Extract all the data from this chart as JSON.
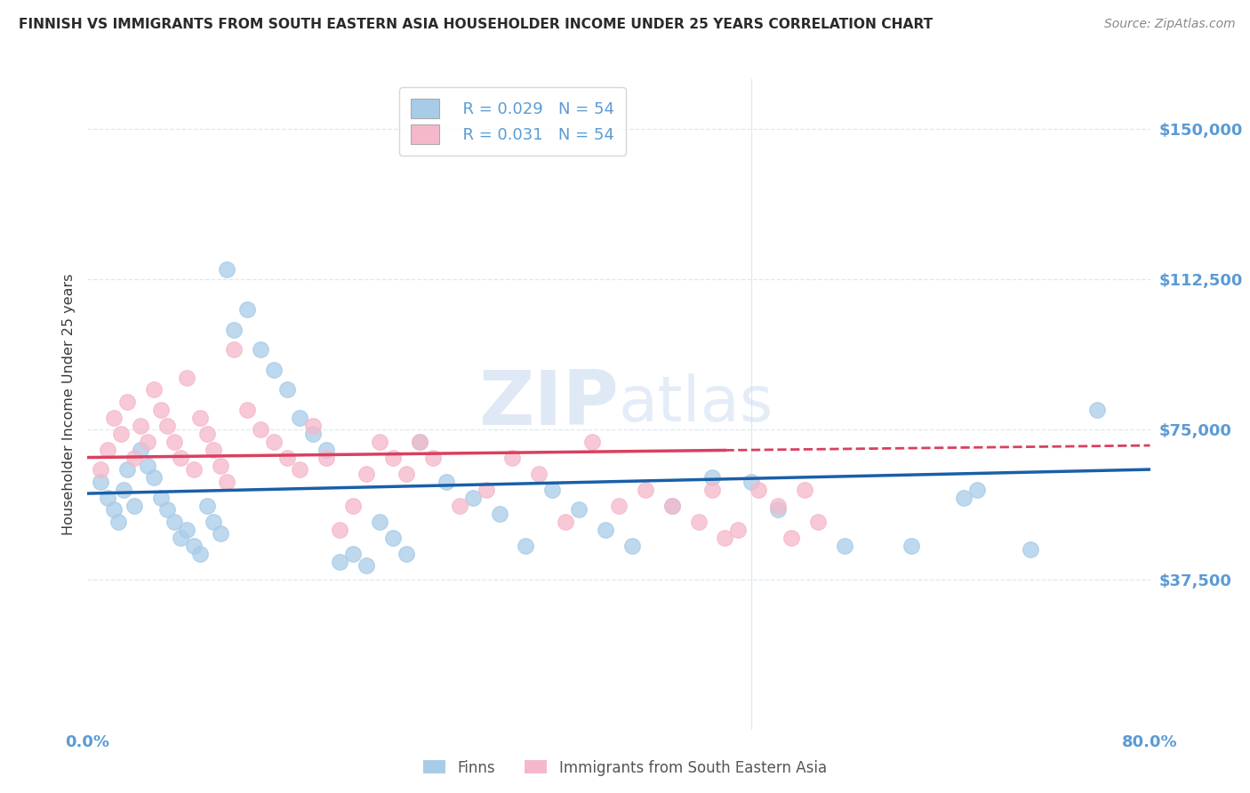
{
  "title": "FINNISH VS IMMIGRANTS FROM SOUTH EASTERN ASIA HOUSEHOLDER INCOME UNDER 25 YEARS CORRELATION CHART",
  "source": "Source: ZipAtlas.com",
  "ylabel": "Householder Income Under 25 years",
  "xlim": [
    0.0,
    80.0
  ],
  "ylim": [
    0,
    162500
  ],
  "yticks": [
    0,
    37500,
    75000,
    112500,
    150000
  ],
  "ytick_labels": [
    "",
    "$37,500",
    "$75,000",
    "$112,500",
    "$150,000"
  ],
  "blue_R": 0.029,
  "blue_N": 54,
  "pink_R": 0.031,
  "pink_N": 54,
  "legend_label_blue": "Finns",
  "legend_label_pink": "Immigrants from South Eastern Asia",
  "blue_color": "#a8cce8",
  "pink_color": "#f5b8ca",
  "blue_line_color": "#1a5fa8",
  "pink_line_color": "#d94060",
  "watermark_zip": "ZIP",
  "watermark_atlas": "atlas",
  "title_color": "#2a2a2a",
  "axis_color": "#5b9bd5",
  "grid_color": "#dde8f5",
  "blue_x": [
    1.0,
    1.5,
    2.0,
    2.3,
    2.7,
    3.0,
    3.5,
    4.0,
    4.5,
    5.0,
    5.5,
    6.0,
    6.5,
    7.0,
    7.5,
    8.0,
    8.5,
    9.0,
    9.5,
    10.0,
    10.5,
    11.0,
    12.0,
    13.0,
    14.0,
    15.0,
    16.0,
    17.0,
    18.0,
    19.0,
    20.0,
    21.0,
    22.0,
    23.0,
    24.0,
    25.0,
    27.0,
    29.0,
    31.0,
    33.0,
    35.0,
    37.0,
    39.0,
    41.0,
    44.0,
    47.0,
    50.0,
    52.0,
    57.0,
    62.0,
    66.0,
    67.0,
    71.0,
    76.0
  ],
  "blue_y": [
    62000,
    58000,
    55000,
    52000,
    60000,
    65000,
    56000,
    70000,
    66000,
    63000,
    58000,
    55000,
    52000,
    48000,
    50000,
    46000,
    44000,
    56000,
    52000,
    49000,
    115000,
    100000,
    105000,
    95000,
    90000,
    85000,
    78000,
    74000,
    70000,
    42000,
    44000,
    41000,
    52000,
    48000,
    44000,
    72000,
    62000,
    58000,
    54000,
    46000,
    60000,
    55000,
    50000,
    46000,
    56000,
    63000,
    62000,
    55000,
    46000,
    46000,
    58000,
    60000,
    45000,
    80000
  ],
  "pink_x": [
    1.0,
    1.5,
    2.0,
    2.5,
    3.0,
    3.5,
    4.0,
    4.5,
    5.0,
    5.5,
    6.0,
    6.5,
    7.0,
    7.5,
    8.0,
    8.5,
    9.0,
    9.5,
    10.0,
    10.5,
    11.0,
    12.0,
    13.0,
    14.0,
    15.0,
    16.0,
    17.0,
    18.0,
    19.0,
    20.0,
    21.0,
    22.0,
    23.0,
    24.0,
    25.0,
    26.0,
    28.0,
    30.0,
    32.0,
    34.0,
    36.0,
    38.0,
    40.0,
    42.0,
    44.0,
    46.0,
    47.0,
    48.0,
    49.0,
    50.5,
    52.0,
    53.0,
    54.0,
    55.0
  ],
  "pink_y": [
    65000,
    70000,
    78000,
    74000,
    82000,
    68000,
    76000,
    72000,
    85000,
    80000,
    76000,
    72000,
    68000,
    88000,
    65000,
    78000,
    74000,
    70000,
    66000,
    62000,
    95000,
    80000,
    75000,
    72000,
    68000,
    65000,
    76000,
    68000,
    50000,
    56000,
    64000,
    72000,
    68000,
    64000,
    72000,
    68000,
    56000,
    60000,
    68000,
    64000,
    52000,
    72000,
    56000,
    60000,
    56000,
    52000,
    60000,
    48000,
    50000,
    60000,
    56000,
    48000,
    60000,
    52000
  ],
  "blue_trend_x0": 0,
  "blue_trend_y0": 59000,
  "blue_trend_x1": 80,
  "blue_trend_y1": 65000,
  "pink_trend_x0": 0,
  "pink_trend_y0": 68000,
  "pink_trend_x1": 80,
  "pink_trend_y1": 71000,
  "pink_solid_end": 48.0
}
